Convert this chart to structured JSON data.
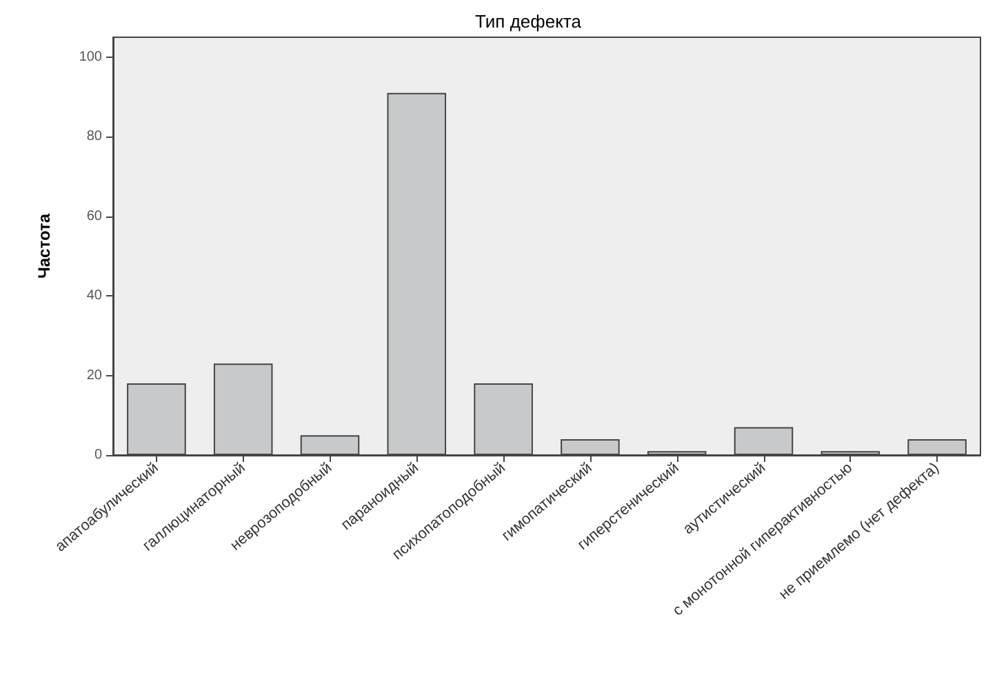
{
  "chart_data": {
    "type": "bar",
    "title": "Тип дефекта",
    "ylabel": "Частота",
    "categories": [
      "апатоабулический",
      "галлюцинаторный",
      "неврозоподобный",
      "параноидный",
      "психопатоподобный",
      "гимопатический",
      "гиперстенический",
      "аутистический",
      "с монотонной гиперактивностью",
      "не приемлемо (нет дефекта)"
    ],
    "values": [
      18,
      23,
      5,
      91,
      18,
      4,
      1,
      7,
      1,
      4
    ],
    "color": "#c8c9cb",
    "ylim": [
      0,
      105
    ],
    "yticks": [
      0,
      20,
      40,
      60,
      80,
      100
    ],
    "grid": false
  }
}
